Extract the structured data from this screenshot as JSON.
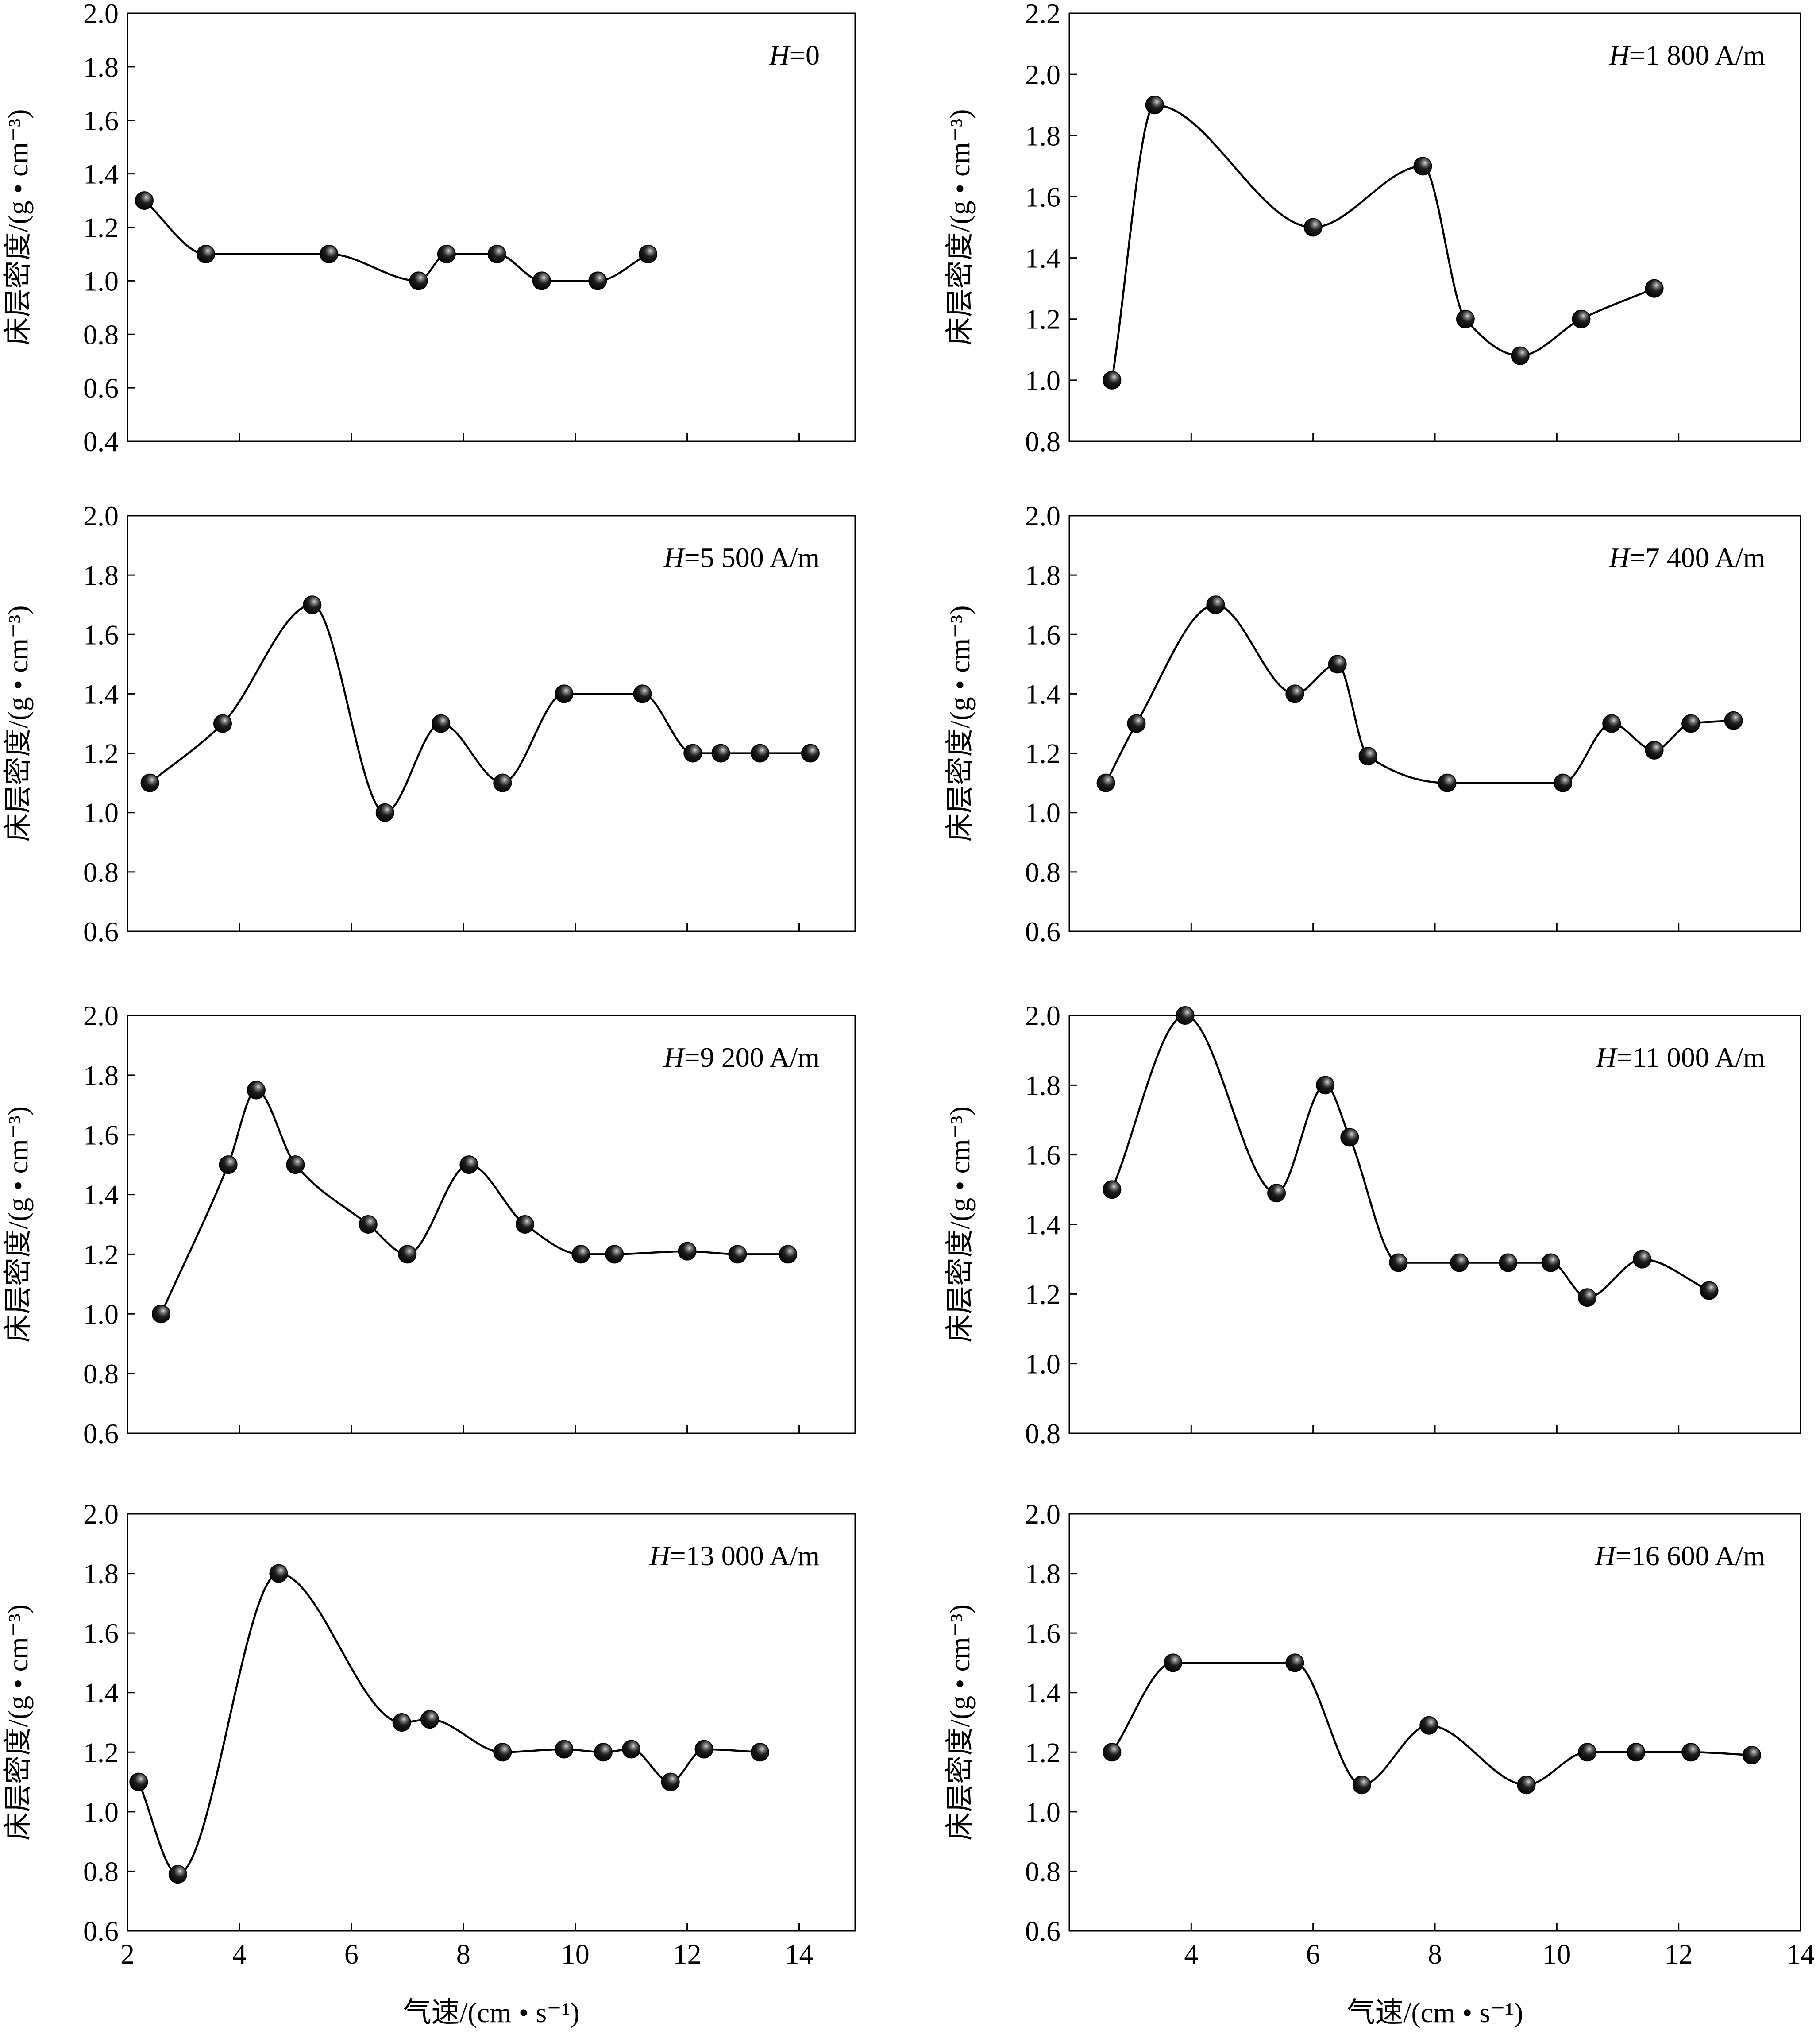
{
  "figure": {
    "ylabel": "床层密度/(g • cm⁻³)",
    "xlabel": "气速/(cm • s⁻¹)"
  },
  "chart_data": [
    {
      "type": "line",
      "title": "H=0",
      "title_parts": {
        "var": "H",
        "rest": "=0"
      },
      "x": [
        2.3,
        3.4,
        5.6,
        7.2,
        7.7,
        8.6,
        9.4,
        10.4,
        11.3
      ],
      "y": [
        1.3,
        1.1,
        1.1,
        1.0,
        1.1,
        1.1,
        1.0,
        1.0,
        1.1
      ],
      "xlim": [
        2,
        15
      ],
      "ylim": [
        0.4,
        2.0
      ],
      "xticks": [
        2,
        4,
        6,
        8,
        10,
        12,
        14
      ],
      "xtick_labels": [
        "2",
        "4",
        "6",
        "8",
        "10",
        "12",
        "14"
      ],
      "yticks": [
        0.4,
        0.6,
        0.8,
        1.0,
        1.2,
        1.4,
        1.6,
        1.8,
        2.0
      ],
      "ytick_labels": [
        "0.4",
        "0.6",
        "0.8",
        "1.0",
        "1.2",
        "1.4",
        "1.6",
        "1.8",
        "2.0"
      ],
      "show_x_labels": false
    },
    {
      "type": "line",
      "title": "H=1 800 A/m",
      "title_parts": {
        "var": "H",
        "rest": "=1 800 A/m"
      },
      "x": [
        2.7,
        3.4,
        6.0,
        7.8,
        8.5,
        9.4,
        10.4,
        11.6
      ],
      "y": [
        1.0,
        1.9,
        1.5,
        1.7,
        1.2,
        1.08,
        1.2,
        1.3
      ],
      "xlim": [
        2,
        14
      ],
      "ylim": [
        0.8,
        2.2
      ],
      "xticks": [
        4,
        6,
        8,
        10,
        12,
        14
      ],
      "xtick_labels": [
        "4",
        "6",
        "8",
        "10",
        "12",
        "14"
      ],
      "yticks": [
        0.8,
        1.0,
        1.2,
        1.4,
        1.6,
        1.8,
        2.0,
        2.2
      ],
      "ytick_labels": [
        "0.8",
        "1.0",
        "1.2",
        "1.4",
        "1.6",
        "1.8",
        "2.0",
        "2.2"
      ],
      "show_x_labels": false
    },
    {
      "type": "line",
      "title": "H=5 500 A/m",
      "title_parts": {
        "var": "H",
        "rest": "=5 500 A/m"
      },
      "x": [
        2.4,
        3.7,
        5.3,
        6.6,
        7.6,
        8.7,
        9.8,
        11.2,
        12.1,
        12.6,
        13.3,
        14.2
      ],
      "y": [
        1.1,
        1.3,
        1.7,
        1.0,
        1.3,
        1.1,
        1.4,
        1.4,
        1.2,
        1.2,
        1.2,
        1.2
      ],
      "xlim": [
        2,
        15
      ],
      "ylim": [
        0.6,
        2.0
      ],
      "xticks": [
        2,
        4,
        6,
        8,
        10,
        12,
        14
      ],
      "xtick_labels": [
        "2",
        "4",
        "6",
        "8",
        "10",
        "12",
        "14"
      ],
      "yticks": [
        0.6,
        0.8,
        1.0,
        1.2,
        1.4,
        1.6,
        1.8,
        2.0
      ],
      "ytick_labels": [
        "0.6",
        "0.8",
        "1.0",
        "1.2",
        "1.4",
        "1.6",
        "1.8",
        "2.0"
      ],
      "show_x_labels": false
    },
    {
      "type": "line",
      "title": "H=7 400 A/m",
      "title_parts": {
        "var": "H",
        "rest": "=7 400 A/m"
      },
      "x": [
        2.6,
        3.1,
        4.4,
        5.7,
        6.4,
        6.9,
        8.2,
        10.1,
        10.9,
        11.6,
        12.2,
        12.9
      ],
      "y": [
        1.1,
        1.3,
        1.7,
        1.4,
        1.5,
        1.19,
        1.1,
        1.1,
        1.3,
        1.21,
        1.3,
        1.31
      ],
      "xlim": [
        2,
        14
      ],
      "ylim": [
        0.6,
        2.0
      ],
      "xticks": [
        4,
        6,
        8,
        10,
        12,
        14
      ],
      "xtick_labels": [
        "4",
        "6",
        "8",
        "10",
        "12",
        "14"
      ],
      "yticks": [
        0.6,
        0.8,
        1.0,
        1.2,
        1.4,
        1.6,
        1.8,
        2.0
      ],
      "ytick_labels": [
        "0.6",
        "0.8",
        "1.0",
        "1.2",
        "1.4",
        "1.6",
        "1.8",
        "2.0"
      ],
      "show_x_labels": false
    },
    {
      "type": "line",
      "title": "H=9 200 A/m",
      "title_parts": {
        "var": "H",
        "rest": "=9 200 A/m"
      },
      "x": [
        2.6,
        3.8,
        4.3,
        5.0,
        6.3,
        7.0,
        8.1,
        9.1,
        10.1,
        10.7,
        12.0,
        12.9,
        13.8
      ],
      "y": [
        1.0,
        1.5,
        1.75,
        1.5,
        1.3,
        1.2,
        1.5,
        1.3,
        1.2,
        1.2,
        1.21,
        1.2,
        1.2
      ],
      "xlim": [
        2,
        15
      ],
      "ylim": [
        0.6,
        2.0
      ],
      "xticks": [
        2,
        4,
        6,
        8,
        10,
        12,
        14
      ],
      "xtick_labels": [
        "2",
        "4",
        "6",
        "8",
        "10",
        "12",
        "14"
      ],
      "yticks": [
        0.6,
        0.8,
        1.0,
        1.2,
        1.4,
        1.6,
        1.8,
        2.0
      ],
      "ytick_labels": [
        "0.6",
        "0.8",
        "1.0",
        "1.2",
        "1.4",
        "1.6",
        "1.8",
        "2.0"
      ],
      "show_x_labels": false
    },
    {
      "type": "line",
      "title": "H=11 000 A/m",
      "title_parts": {
        "var": "H",
        "rest": "=11 000 A/m"
      },
      "x": [
        2.7,
        3.9,
        5.4,
        6.2,
        6.6,
        7.4,
        8.4,
        9.2,
        9.9,
        10.5,
        11.4,
        12.5
      ],
      "y": [
        1.5,
        2.0,
        1.49,
        1.8,
        1.65,
        1.29,
        1.29,
        1.29,
        1.29,
        1.19,
        1.3,
        1.21
      ],
      "xlim": [
        2,
        14
      ],
      "ylim": [
        0.8,
        2.0
      ],
      "xticks": [
        4,
        6,
        8,
        10,
        12,
        14
      ],
      "xtick_labels": [
        "4",
        "6",
        "8",
        "10",
        "12",
        "14"
      ],
      "yticks": [
        0.8,
        1.0,
        1.2,
        1.4,
        1.6,
        1.8,
        2.0
      ],
      "ytick_labels": [
        "0.8",
        "1.0",
        "1.2",
        "1.4",
        "1.6",
        "1.8",
        "2.0"
      ],
      "show_x_labels": false
    },
    {
      "type": "line",
      "title": "H=13 000 A/m",
      "title_parts": {
        "var": "H",
        "rest": "=13 000 A/m"
      },
      "x": [
        2.2,
        2.9,
        4.7,
        6.9,
        7.4,
        8.7,
        9.8,
        10.5,
        11.0,
        11.7,
        12.3,
        13.3
      ],
      "y": [
        1.1,
        0.79,
        1.8,
        1.3,
        1.31,
        1.2,
        1.21,
        1.2,
        1.21,
        1.1,
        1.21,
        1.2
      ],
      "xlim": [
        2,
        15
      ],
      "ylim": [
        0.6,
        2.0
      ],
      "xticks": [
        2,
        4,
        6,
        8,
        10,
        12,
        14
      ],
      "xtick_labels": [
        "2",
        "4",
        "6",
        "8",
        "10",
        "12",
        "14"
      ],
      "yticks": [
        0.6,
        0.8,
        1.0,
        1.2,
        1.4,
        1.6,
        1.8,
        2.0
      ],
      "ytick_labels": [
        "0.6",
        "0.8",
        "1.0",
        "1.2",
        "1.4",
        "1.6",
        "1.8",
        "2.0"
      ],
      "show_x_labels": true
    },
    {
      "type": "line",
      "title": "H=16 600 A/m",
      "title_parts": {
        "var": "H",
        "rest": "=16 600 A/m"
      },
      "x": [
        2.7,
        3.7,
        5.7,
        6.8,
        7.9,
        9.5,
        10.5,
        11.3,
        12.2,
        13.2
      ],
      "y": [
        1.2,
        1.5,
        1.5,
        1.09,
        1.29,
        1.09,
        1.2,
        1.2,
        1.2,
        1.19
      ],
      "xlim": [
        2,
        14
      ],
      "ylim": [
        0.6,
        2.0
      ],
      "xticks": [
        4,
        6,
        8,
        10,
        12,
        14
      ],
      "xtick_labels": [
        "4",
        "6",
        "8",
        "10",
        "12",
        "14"
      ],
      "yticks": [
        0.6,
        0.8,
        1.0,
        1.2,
        1.4,
        1.6,
        1.8,
        2.0
      ],
      "ytick_labels": [
        "0.6",
        "0.8",
        "1.0",
        "1.2",
        "1.4",
        "1.6",
        "1.8",
        "2.0"
      ],
      "show_x_labels": true
    }
  ]
}
